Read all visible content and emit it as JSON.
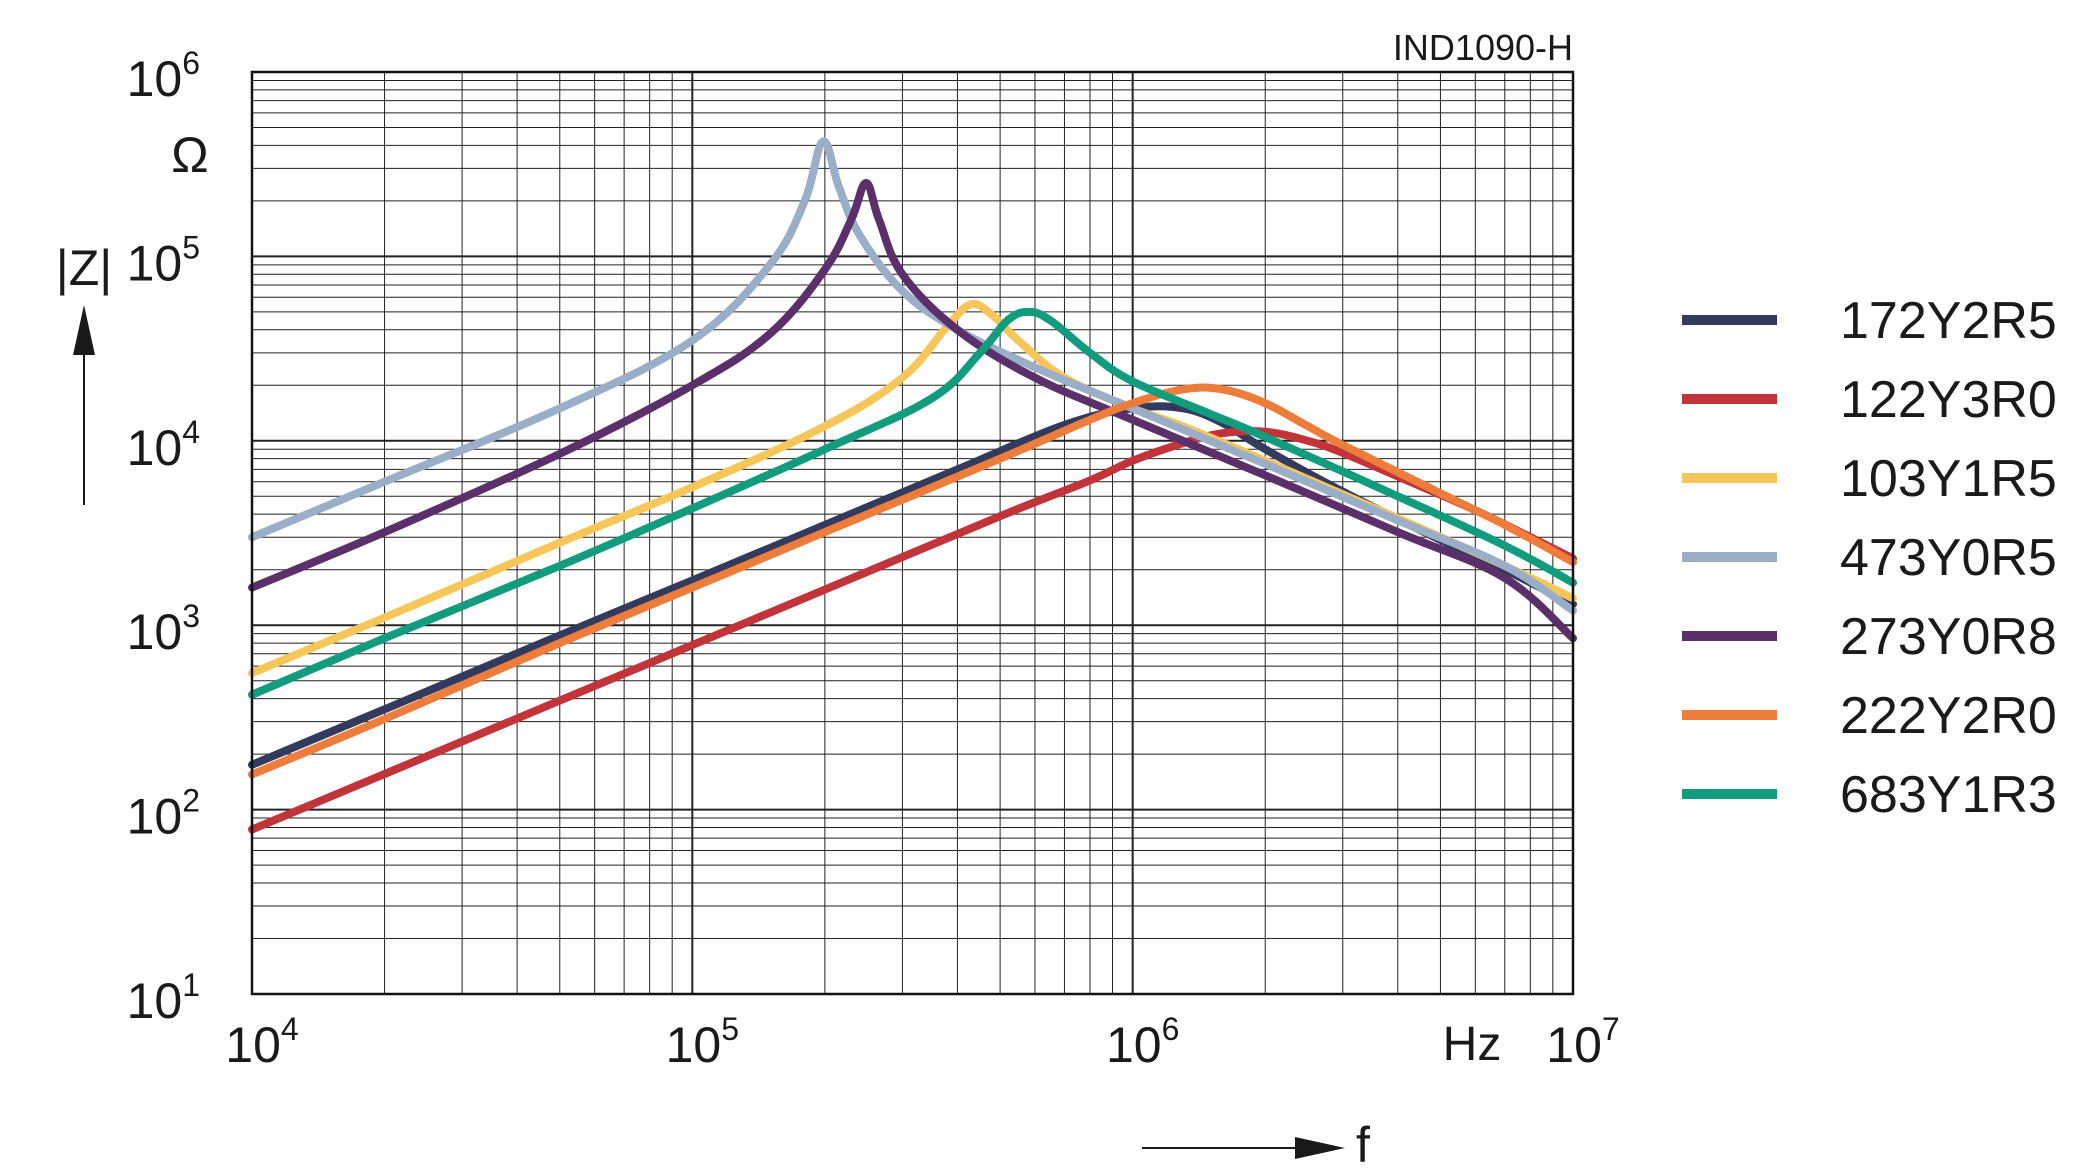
{
  "chart_data": {
    "type": "line",
    "id_label": "IND1090-H",
    "x_scale": "log",
    "y_scale": "log",
    "xlim": [
      10000,
      10000000
    ],
    "ylim": [
      10,
      1000000
    ],
    "x_ticks": [
      {
        "base": "10",
        "exp": "4"
      },
      {
        "base": "10",
        "exp": "5"
      },
      {
        "base": "10",
        "exp": "6"
      },
      {
        "base": "10",
        "exp": "7"
      }
    ],
    "y_ticks": [
      {
        "base": "10",
        "exp": "1"
      },
      {
        "base": "10",
        "exp": "2"
      },
      {
        "base": "10",
        "exp": "3"
      },
      {
        "base": "10",
        "exp": "4"
      },
      {
        "base": "10",
        "exp": "5"
      },
      {
        "base": "10",
        "exp": "6"
      }
    ],
    "x_unit": "Hz",
    "x_label": "f",
    "y_unit": "Ω",
    "y_label": "|Z|",
    "grid": true,
    "legend_position": "right",
    "series": [
      {
        "name": "172Y2R5",
        "color": "#343a5e",
        "points": [
          [
            10000,
            175
          ],
          [
            20000,
            350
          ],
          [
            50000,
            880
          ],
          [
            100000,
            1750
          ],
          [
            200000,
            3500
          ],
          [
            400000,
            7000
          ],
          [
            700000,
            12200
          ],
          [
            1000000,
            15000
          ],
          [
            1300000,
            15000
          ],
          [
            1600000,
            12500
          ],
          [
            2000000,
            9000
          ],
          [
            3000000,
            5300
          ],
          [
            5000000,
            2900
          ],
          [
            7000000,
            2000
          ],
          [
            10000000,
            1300
          ]
        ]
      },
      {
        "name": "122Y3R0",
        "color": "#c0343a",
        "points": [
          [
            10000,
            78
          ],
          [
            20000,
            156
          ],
          [
            50000,
            390
          ],
          [
            100000,
            780
          ],
          [
            200000,
            1560
          ],
          [
            500000,
            3900
          ],
          [
            800000,
            6100
          ],
          [
            1000000,
            7800
          ],
          [
            1300000,
            9700
          ],
          [
            1600000,
            11000
          ],
          [
            2000000,
            11200
          ],
          [
            2500000,
            10000
          ],
          [
            3000000,
            8600
          ],
          [
            4000000,
            6400
          ],
          [
            6000000,
            4200
          ],
          [
            10000000,
            2300
          ]
        ]
      },
      {
        "name": "103Y1R5",
        "color": "#f6c65b",
        "points": [
          [
            10000,
            550
          ],
          [
            20000,
            1100
          ],
          [
            50000,
            2800
          ],
          [
            100000,
            5600
          ],
          [
            200000,
            12000
          ],
          [
            300000,
            22000
          ],
          [
            380000,
            42000
          ],
          [
            430000,
            55000
          ],
          [
            480000,
            48000
          ],
          [
            550000,
            35000
          ],
          [
            700000,
            22000
          ],
          [
            1000000,
            15000
          ],
          [
            1300000,
            12000
          ],
          [
            2000000,
            7800
          ],
          [
            4000000,
            3800
          ],
          [
            7000000,
            2100
          ],
          [
            10000000,
            1400
          ]
        ]
      },
      {
        "name": "473Y0R5",
        "color": "#9aaec8",
        "points": [
          [
            10000,
            3000
          ],
          [
            20000,
            6000
          ],
          [
            50000,
            15000
          ],
          [
            100000,
            35000
          ],
          [
            150000,
            90000
          ],
          [
            180000,
            200000
          ],
          [
            198000,
            420000
          ],
          [
            215000,
            240000
          ],
          [
            240000,
            130000
          ],
          [
            300000,
            65000
          ],
          [
            400000,
            40000
          ],
          [
            600000,
            25000
          ],
          [
            1000000,
            15000
          ],
          [
            2000000,
            7500
          ],
          [
            4000000,
            3700
          ],
          [
            7000000,
            2100
          ],
          [
            10000000,
            1200
          ]
        ]
      },
      {
        "name": "273Y0R8",
        "color": "#5a2f6a",
        "points": [
          [
            10000,
            1600
          ],
          [
            20000,
            3200
          ],
          [
            50000,
            8500
          ],
          [
            100000,
            20000
          ],
          [
            150000,
            38000
          ],
          [
            200000,
            85000
          ],
          [
            230000,
            160000
          ],
          [
            248000,
            250000
          ],
          [
            265000,
            160000
          ],
          [
            300000,
            80000
          ],
          [
            400000,
            40000
          ],
          [
            600000,
            22000
          ],
          [
            1000000,
            13000
          ],
          [
            2000000,
            6500
          ],
          [
            4000000,
            3200
          ],
          [
            7000000,
            1800
          ],
          [
            10000000,
            850
          ]
        ]
      },
      {
        "name": "222Y2R0",
        "color": "#ee7c3b",
        "points": [
          [
            10000,
            155
          ],
          [
            20000,
            310
          ],
          [
            50000,
            800
          ],
          [
            100000,
            1600
          ],
          [
            200000,
            3200
          ],
          [
            500000,
            8000
          ],
          [
            800000,
            13000
          ],
          [
            1000000,
            16000
          ],
          [
            1300000,
            19000
          ],
          [
            1600000,
            19000
          ],
          [
            2000000,
            16000
          ],
          [
            2500000,
            12000
          ],
          [
            3000000,
            9500
          ],
          [
            5000000,
            5200
          ],
          [
            7000000,
            3500
          ],
          [
            10000000,
            2200
          ]
        ]
      },
      {
        "name": "683Y1R3",
        "color": "#129c7e",
        "points": [
          [
            10000,
            420
          ],
          [
            20000,
            850
          ],
          [
            50000,
            2100
          ],
          [
            100000,
            4300
          ],
          [
            200000,
            9000
          ],
          [
            350000,
            17000
          ],
          [
            450000,
            30000
          ],
          [
            520000,
            45000
          ],
          [
            580000,
            50000
          ],
          [
            650000,
            45000
          ],
          [
            800000,
            30000
          ],
          [
            1000000,
            21000
          ],
          [
            1500000,
            14000
          ],
          [
            2000000,
            10500
          ],
          [
            4000000,
            5000
          ],
          [
            7000000,
            2700
          ],
          [
            10000000,
            1700
          ]
        ]
      }
    ]
  }
}
